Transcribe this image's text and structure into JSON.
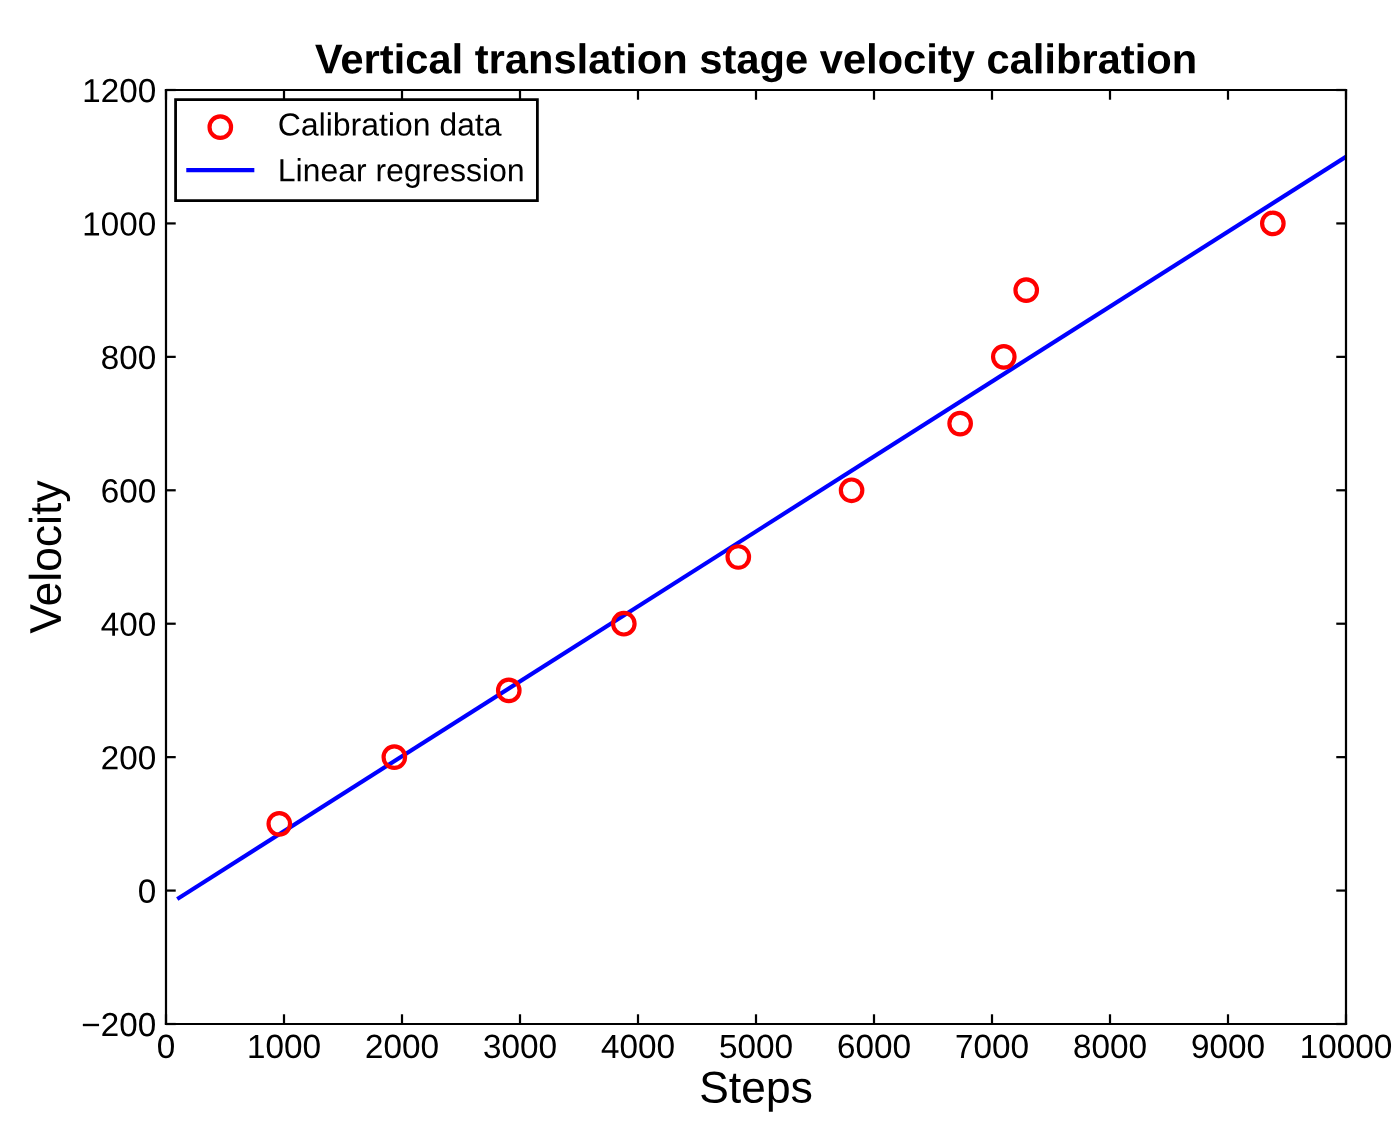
{
  "chart_data": {
    "type": "scatter",
    "title": "Vertical translation stage velocity calibration",
    "xlabel": "Steps",
    "ylabel": "Velocity",
    "series": [
      {
        "name": "Calibration data",
        "color": "#ff0000",
        "marker": "circle",
        "x": [
          960,
          1935,
          2905,
          3880,
          4850,
          5810,
          6730,
          7100,
          7290,
          9380
        ],
        "values": [
          100,
          200,
          300,
          400,
          500,
          600,
          700,
          800,
          900,
          1000
        ]
      },
      {
        "name": "Linear regression",
        "type": "line",
        "color": "#0000ff",
        "line_style": "solid",
        "x": [
          110,
          10000
        ],
        "values": [
          -11,
          1100
        ]
      }
    ],
    "xlim": [
      0,
      10000
    ],
    "xticks": [
      0,
      1000,
      2000,
      3000,
      4000,
      5000,
      6000,
      7000,
      8000,
      9000,
      10000
    ],
    "ylim": [
      -200,
      1200
    ],
    "yticks": [
      {
        "value": -200,
        "label": "−200"
      },
      0,
      200,
      400,
      600,
      800,
      1000,
      1200
    ],
    "grid": false,
    "legend": "top left"
  }
}
